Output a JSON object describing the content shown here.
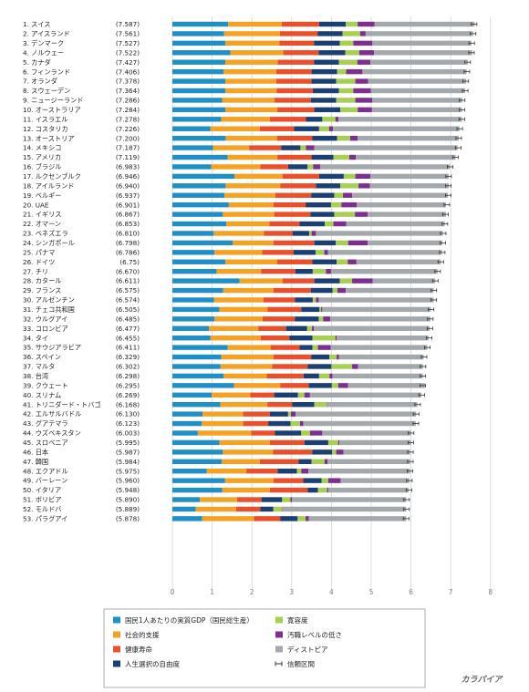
{
  "chart_data": {
    "type": "bar",
    "stacked": true,
    "orientation": "horizontal",
    "x_ticks": [
      "0",
      "1",
      "2",
      "3",
      "4",
      "5",
      "6",
      "7",
      "8"
    ],
    "xlim": [
      0,
      8
    ],
    "grid": true,
    "legend_position": "bottom",
    "series": [
      {
        "name": "国民1人あたりの実質GDP（国民総生産）",
        "color": "#1f8fc6"
      },
      {
        "name": "社会的支援",
        "color": "#f3a224"
      },
      {
        "name": "健康寿命",
        "color": "#e94f2a"
      },
      {
        "name": "人生選択の自由度",
        "color": "#1b3f73"
      },
      {
        "name": "寛容度",
        "color": "#a6cf54"
      },
      {
        "name": "汚職レベルの低さ",
        "color": "#7d2f8f"
      },
      {
        "name": "ディストピア",
        "color": "#a3a8ad"
      },
      {
        "name": "信頼区間",
        "color": "#333333"
      }
    ],
    "rows": [
      {
        "label": "1. スイス",
        "score": "(7.587)",
        "value": 7.587,
        "parts": [
          1.4,
          1.35,
          0.94,
          0.67,
          0.3,
          0.42,
          2.52
        ]
      },
      {
        "label": "2. アイスランド",
        "score": "(7.561)",
        "value": 7.561,
        "parts": [
          1.3,
          1.4,
          0.95,
          0.63,
          0.44,
          0.14,
          2.7
        ]
      },
      {
        "label": "3. デンマーク",
        "score": "(7.527)",
        "value": 7.527,
        "parts": [
          1.33,
          1.36,
          0.87,
          0.65,
          0.34,
          0.48,
          2.49
        ]
      },
      {
        "label": "4. ノルウェー",
        "score": "(7.522)",
        "value": 7.522,
        "parts": [
          1.46,
          1.33,
          0.89,
          0.67,
          0.35,
          0.37,
          2.47
        ]
      },
      {
        "label": "5. カナダ",
        "score": "(7.427)",
        "value": 7.427,
        "parts": [
          1.33,
          1.32,
          0.91,
          0.63,
          0.46,
          0.33,
          2.45
        ]
      },
      {
        "label": "6. フィンランド",
        "score": "(7.406)",
        "value": 7.406,
        "parts": [
          1.29,
          1.32,
          0.89,
          0.64,
          0.23,
          0.41,
          2.62
        ]
      },
      {
        "label": "7. オランダ",
        "score": "(7.378)",
        "value": 7.378,
        "parts": [
          1.33,
          1.28,
          0.89,
          0.62,
          0.48,
          0.32,
          2.47
        ]
      },
      {
        "label": "8. スウェーデン",
        "score": "(7.364)",
        "value": 7.364,
        "parts": [
          1.33,
          1.29,
          0.91,
          0.66,
          0.36,
          0.44,
          2.37
        ]
      },
      {
        "label": "9. ニュージーランド",
        "score": "(7.286)",
        "value": 7.286,
        "parts": [
          1.25,
          1.32,
          0.91,
          0.64,
          0.48,
          0.43,
          2.26
        ]
      },
      {
        "label": "10. オーストラリア",
        "score": "(7.284)",
        "value": 7.284,
        "parts": [
          1.33,
          1.31,
          0.93,
          0.65,
          0.44,
          0.36,
          2.26
        ]
      },
      {
        "label": "11. イスラエル",
        "score": "(7.278)",
        "value": 7.278,
        "parts": [
          1.23,
          1.22,
          0.91,
          0.41,
          0.33,
          0.08,
          3.1
        ]
      },
      {
        "label": "12. コスタリカ",
        "score": "(7.226)",
        "value": 7.226,
        "parts": [
          0.96,
          1.24,
          0.86,
          0.63,
          0.25,
          0.1,
          3.18
        ]
      },
      {
        "label": "13. オーストリア",
        "score": "(7.200)",
        "value": 7.2,
        "parts": [
          1.34,
          1.29,
          0.89,
          0.62,
          0.33,
          0.19,
          2.54
        ]
      },
      {
        "label": "14. メキシコ",
        "score": "(7.187)",
        "value": 7.187,
        "parts": [
          1.02,
          0.91,
          0.81,
          0.48,
          0.14,
          0.21,
          3.6
        ]
      },
      {
        "label": "15. アメリカ",
        "score": "(7.119)",
        "value": 7.119,
        "parts": [
          1.39,
          1.25,
          0.86,
          0.55,
          0.4,
          0.16,
          2.51
        ]
      },
      {
        "label": "16. ブラジル",
        "score": "(6.983)",
        "value": 6.983,
        "parts": [
          0.98,
          1.23,
          0.7,
          0.49,
          0.14,
          0.18,
          3.26
        ]
      },
      {
        "label": "17. ルクセンブルク",
        "score": "(6.946)",
        "value": 6.946,
        "parts": [
          1.56,
          1.21,
          0.92,
          0.62,
          0.29,
          0.38,
          1.97
        ]
      },
      {
        "label": "18. アイルランド",
        "score": "(6.940)",
        "value": 6.94,
        "parts": [
          1.34,
          1.37,
          0.9,
          0.61,
          0.46,
          0.29,
          1.98
        ]
      },
      {
        "label": "19. ベルギー",
        "score": "(6.937)",
        "value": 6.937,
        "parts": [
          1.31,
          1.28,
          0.9,
          0.58,
          0.22,
          0.23,
          2.41
        ]
      },
      {
        "label": "20. UAE",
        "score": "(6.901)",
        "value": 6.901,
        "parts": [
          1.42,
          1.12,
          0.81,
          0.64,
          0.26,
          0.39,
          2.24
        ]
      },
      {
        "label": "21. イギリス",
        "score": "(6.867)",
        "value": 6.867,
        "parts": [
          1.27,
          1.29,
          0.91,
          0.6,
          0.52,
          0.32,
          1.97
        ]
      },
      {
        "label": "22. オマーン",
        "score": "(6.853)",
        "value": 6.853,
        "parts": [
          1.36,
          1.08,
          0.76,
          0.63,
          0.22,
          0.32,
          2.48
        ]
      },
      {
        "label": "23. ベネズエラ",
        "score": "(6.810)",
        "value": 6.81,
        "parts": [
          1.04,
          1.26,
          0.72,
          0.42,
          0.06,
          0.11,
          3.19
        ]
      },
      {
        "label": "24. シンガポール",
        "score": "(6.798)",
        "value": 6.798,
        "parts": [
          1.52,
          1.02,
          1.03,
          0.54,
          0.31,
          0.49,
          1.88
        ]
      },
      {
        "label": "25. パナマ",
        "score": "(6.786)",
        "value": 6.786,
        "parts": [
          1.06,
          1.2,
          0.79,
          0.55,
          0.22,
          0.09,
          2.87
        ]
      },
      {
        "label": "26. ドイツ",
        "score": "(6.75)",
        "value": 6.75,
        "parts": [
          1.33,
          1.3,
          0.89,
          0.61,
          0.28,
          0.22,
          2.12
        ]
      },
      {
        "label": "27. チリ",
        "score": "(6.670)",
        "value": 6.67,
        "parts": [
          1.11,
          1.12,
          0.86,
          0.44,
          0.33,
          0.13,
          2.68
        ]
      },
      {
        "label": "28. カタール",
        "score": "(6.611)",
        "value": 6.611,
        "parts": [
          1.69,
          1.08,
          0.8,
          0.64,
          0.31,
          0.52,
          1.57
        ]
      },
      {
        "label": "29. フランス",
        "score": "(6.575)",
        "value": 6.575,
        "parts": [
          1.28,
          1.26,
          0.94,
          0.55,
          0.12,
          0.21,
          2.21
        ]
      },
      {
        "label": "30. アルゼンチン",
        "score": "(6.574)",
        "value": 6.574,
        "parts": [
          1.05,
          1.24,
          0.79,
          0.45,
          0.08,
          0.07,
          2.89
        ]
      },
      {
        "label": "31. チェコ共和国",
        "score": "(6.505)",
        "value": 6.505,
        "parts": [
          1.18,
          1.21,
          0.85,
          0.46,
          0.04,
          0.03,
          2.73
        ]
      },
      {
        "label": "32. ウルグアイ",
        "score": "(6.485)",
        "value": 6.485,
        "parts": [
          1.06,
          1.21,
          0.81,
          0.6,
          0.11,
          0.18,
          2.52
        ]
      },
      {
        "label": "33. コロンビア",
        "score": "(6.477)",
        "value": 6.477,
        "parts": [
          0.92,
          1.24,
          0.7,
          0.53,
          0.12,
          0.05,
          2.91
        ]
      },
      {
        "label": "34. タイ",
        "score": "(6.455)",
        "value": 6.455,
        "parts": [
          0.96,
          1.26,
          0.72,
          0.58,
          0.58,
          0.03,
          2.31
        ]
      },
      {
        "label": "35. サウジアラビア",
        "score": "(6.411)",
        "value": 6.411,
        "parts": [
          1.39,
          1.08,
          0.73,
          0.32,
          0.14,
          0.32,
          2.43
        ]
      },
      {
        "label": "36. スペイン",
        "score": "(6.329)",
        "value": 6.329,
        "parts": [
          1.23,
          1.31,
          0.95,
          0.46,
          0.18,
          0.06,
          2.13
        ]
      },
      {
        "label": "37. マルタ",
        "score": "(6.302)",
        "value": 6.302,
        "parts": [
          1.21,
          1.3,
          0.89,
          0.6,
          0.52,
          0.15,
          1.63
        ]
      },
      {
        "label": "38. 台湾",
        "score": "(6.298)",
        "value": 6.298,
        "parts": [
          1.29,
          1.08,
          0.93,
          0.39,
          0.26,
          0.08,
          2.27
        ]
      },
      {
        "label": "39. クウェート",
        "score": "(6.295)",
        "value": 6.295,
        "parts": [
          1.55,
          1.16,
          0.72,
          0.58,
          0.16,
          0.25,
          1.93
        ]
      },
      {
        "label": "40. スリナム",
        "score": "(6.269)",
        "value": 6.269,
        "parts": [
          0.99,
          0.97,
          0.6,
          0.6,
          0.16,
          0.14,
          2.8
        ]
      },
      {
        "label": "41. トリニダード・トバゴ",
        "score": "(6.168)",
        "value": 6.168,
        "parts": [
          1.21,
          1.18,
          0.62,
          0.56,
          0.31,
          0.01,
          2.27
        ]
      },
      {
        "label": "42. エルサルバドル",
        "score": "(6.130)",
        "value": 6.13,
        "parts": [
          0.76,
          1.02,
          0.67,
          0.46,
          0.07,
          0.12,
          3.03
        ]
      },
      {
        "label": "43. グアテマラ",
        "score": "(6.123)",
        "value": 6.123,
        "parts": [
          0.74,
          1.04,
          0.63,
          0.56,
          0.24,
          0.08,
          2.83
        ]
      },
      {
        "label": "44. ウズベキスタン",
        "score": "(6.003)",
        "value": 6.003,
        "parts": [
          0.64,
          1.34,
          0.6,
          0.66,
          0.22,
          0.31,
          2.23
        ]
      },
      {
        "label": "45. スロベニア",
        "score": "(5.995)",
        "value": 5.995,
        "parts": [
          1.18,
          1.27,
          0.87,
          0.6,
          0.25,
          0.03,
          1.8
        ]
      },
      {
        "label": "46. 日本",
        "score": "(5.987)",
        "value": 5.987,
        "parts": [
          1.27,
          1.26,
          0.99,
          0.5,
          0.1,
          0.18,
          1.68
        ]
      },
      {
        "label": "47. 韓国",
        "score": "(5.984)",
        "value": 5.984,
        "parts": [
          1.24,
          0.96,
          0.97,
          0.33,
          0.33,
          0.07,
          2.08
        ]
      },
      {
        "label": "48. エクアドル",
        "score": "(5.975)",
        "value": 5.975,
        "parts": [
          0.86,
          1.0,
          0.79,
          0.48,
          0.11,
          0.18,
          2.56
        ]
      },
      {
        "label": "49. バーレーン",
        "score": "(5.960)",
        "value": 5.96,
        "parts": [
          1.32,
          1.22,
          0.75,
          0.46,
          0.17,
          0.31,
          1.73
        ]
      },
      {
        "label": "50. イタリア",
        "score": "(5.948)",
        "value": 5.948,
        "parts": [
          1.25,
          1.2,
          0.95,
          0.26,
          0.23,
          0.03,
          2.02
        ]
      },
      {
        "label": "51. ボリビア",
        "score": "(5.890)",
        "value": 5.89,
        "parts": [
          0.69,
          0.94,
          0.61,
          0.52,
          0.21,
          0.04,
          2.87
        ]
      },
      {
        "label": "52. モルドバ",
        "score": "(5.889)",
        "value": 5.889,
        "parts": [
          0.59,
          1.01,
          0.61,
          0.33,
          0.21,
          0.01,
          3.12
        ]
      },
      {
        "label": "53. パラグアイ",
        "score": "(5.878)",
        "value": 5.878,
        "parts": [
          0.75,
          1.3,
          0.66,
          0.44,
          0.2,
          0.08,
          2.45
        ]
      }
    ]
  },
  "watermark": "カラパイア"
}
